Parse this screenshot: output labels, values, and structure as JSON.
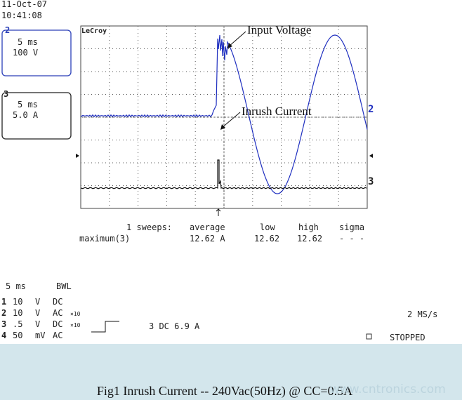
{
  "timestamp": {
    "date": "11-Oct-07",
    "time": "10:41:08"
  },
  "channel_boxes": [
    {
      "channel": "2",
      "timebase": "5 ms",
      "scale": "100 V"
    },
    {
      "channel": "3",
      "timebase": "5 ms",
      "scale": "5.0 A"
    }
  ],
  "brand": "LeCroy",
  "annotations": {
    "voltage": "Input Voltage",
    "current": "Inrush Current"
  },
  "trace_markers": {
    "voltage": "2",
    "current": "3"
  },
  "statistics": {
    "header": [
      "1 sweeps:",
      "average",
      "low",
      "high",
      "sigma"
    ],
    "row": [
      "maximum(3)",
      "12.62 A",
      "12.62",
      "12.62",
      "- - -"
    ]
  },
  "settings": {
    "timebase": "5 ms",
    "bandwidth": "BWL",
    "channels": [
      [
        "1",
        "10",
        "V",
        "DC"
      ],
      [
        "2",
        "10",
        "V",
        "AC",
        "×10"
      ],
      [
        "3",
        ".5",
        "V",
        "DC",
        "×10"
      ],
      [
        "4",
        "50",
        "mV",
        "AC"
      ]
    ],
    "trigger": "3 DC 6.9 A",
    "sample_rate": "2 MS/s",
    "status": "STOPPED"
  },
  "caption": "Fig1  Inrush Current  -- 240Vac(50Hz) @ CC=0.5A",
  "watermark": "www.cntronics.com"
}
